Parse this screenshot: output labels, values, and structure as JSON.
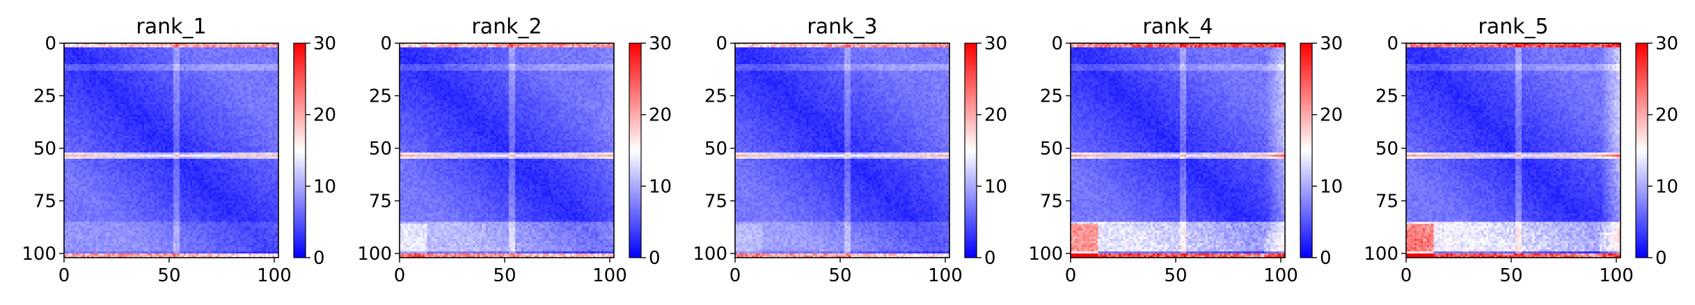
{
  "chart_data": [
    {
      "type": "heatmap",
      "title": "rank_1",
      "xlabel": "",
      "ylabel": "",
      "x_range": [
        0,
        102
      ],
      "y_range": [
        0,
        102
      ],
      "x_ticks": [
        0,
        50,
        100
      ],
      "y_ticks": [
        0,
        25,
        50,
        75,
        100
      ],
      "colorbar": {
        "range": [
          0,
          30
        ],
        "ticks": [
          0,
          10,
          20,
          30
        ],
        "colormap": "bwr"
      },
      "features": {
        "diag": 1.0,
        "band": 13.0,
        "edge": 16.0,
        "right": 0.0,
        "bl": 0.0,
        "br": 0.0,
        "lowband": 2.0
      }
    },
    {
      "type": "heatmap",
      "title": "rank_2",
      "xlabel": "",
      "ylabel": "",
      "x_range": [
        0,
        102
      ],
      "y_range": [
        0,
        102
      ],
      "x_ticks": [
        0,
        50,
        100
      ],
      "y_ticks": [
        0,
        25,
        50,
        75,
        100
      ],
      "colorbar": {
        "range": [
          0,
          30
        ],
        "ticks": [
          0,
          10,
          20,
          30
        ],
        "colormap": "bwr"
      },
      "features": {
        "diag": 1.0,
        "band": 13.5,
        "edge": 17.0,
        "right": 1.0,
        "bl": 3.0,
        "br": 0.0,
        "lowband": 5.0
      }
    },
    {
      "type": "heatmap",
      "title": "rank_3",
      "xlabel": "",
      "ylabel": "",
      "x_range": [
        0,
        102
      ],
      "y_range": [
        0,
        102
      ],
      "x_ticks": [
        0,
        50,
        100
      ],
      "y_ticks": [
        0,
        25,
        50,
        75,
        100
      ],
      "colorbar": {
        "range": [
          0,
          30
        ],
        "ticks": [
          0,
          10,
          20,
          30
        ],
        "colormap": "bwr"
      },
      "features": {
        "diag": 1.0,
        "band": 13.0,
        "edge": 16.0,
        "right": 0.5,
        "bl": 2.0,
        "br": 0.0,
        "lowband": 3.0
      }
    },
    {
      "type": "heatmap",
      "title": "rank_4",
      "xlabel": "",
      "ylabel": "",
      "x_range": [
        0,
        102
      ],
      "y_range": [
        0,
        102
      ],
      "x_ticks": [
        0,
        50,
        100
      ],
      "y_ticks": [
        0,
        25,
        50,
        75,
        100
      ],
      "colorbar": {
        "range": [
          0,
          30
        ],
        "ticks": [
          0,
          10,
          20,
          30
        ],
        "colormap": "bwr"
      },
      "features": {
        "diag": 1.0,
        "band": 14.0,
        "edge": 22.0,
        "right": 6.0,
        "bl": 9.0,
        "br": 2.0,
        "lowband": 8.0
      }
    },
    {
      "type": "heatmap",
      "title": "rank_5",
      "xlabel": "",
      "ylabel": "",
      "x_range": [
        0,
        102
      ],
      "y_range": [
        0,
        102
      ],
      "x_ticks": [
        0,
        50,
        100
      ],
      "y_ticks": [
        0,
        25,
        50,
        75,
        100
      ],
      "colorbar": {
        "range": [
          0,
          30
        ],
        "ticks": [
          0,
          10,
          20,
          30
        ],
        "colormap": "bwr"
      },
      "features": {
        "diag": 1.0,
        "band": 14.0,
        "edge": 22.0,
        "right": 7.0,
        "bl": 10.0,
        "br": 2.0,
        "lowband": 9.0
      }
    }
  ]
}
